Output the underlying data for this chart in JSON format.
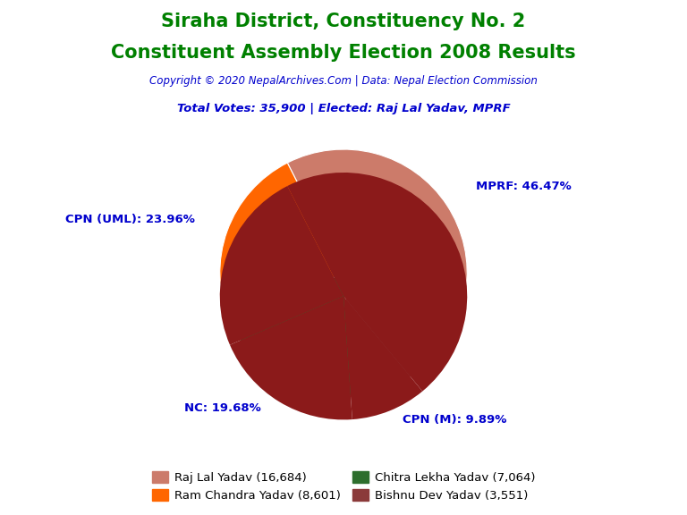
{
  "title_line1": "Siraha District, Constituency No. 2",
  "title_line2": "Constituent Assembly Election 2008 Results",
  "title_color": "#008000",
  "copyright_text": "Copyright © 2020 NepalArchives.Com | Data: Nepal Election Commission",
  "copyright_color": "#0000CD",
  "total_votes_text": "Total Votes: 35,900 | Elected: Raj Lal Yadav, MPRF",
  "total_votes_color": "#0000CD",
  "slices": [
    {
      "label": "MPRF",
      "value": 16684,
      "pct": "46.47",
      "color": "#CC7B6A"
    },
    {
      "label": "CPN (M)",
      "value": 3551,
      "pct": "9.89",
      "color": "#8B3A3A"
    },
    {
      "label": "NC",
      "value": 7064,
      "pct": "19.68",
      "color": "#2D6E2D"
    },
    {
      "label": "CPN (UML)",
      "value": 8601,
      "pct": "23.96",
      "color": "#FF6600"
    }
  ],
  "legend_entries": [
    {
      "label": "Raj Lal Yadav (16,684)",
      "color": "#CC7B6A"
    },
    {
      "label": "Ram Chandra Yadav (8,601)",
      "color": "#FF6600"
    },
    {
      "label": "Chitra Lekha Yadav (7,064)",
      "color": "#2D6E2D"
    },
    {
      "label": "Bishnu Dev Yadav (3,551)",
      "color": "#8B3A3A"
    }
  ],
  "label_color": "#0000CD",
  "background_color": "#FFFFFF",
  "startangle": 117,
  "shadow_color": "#8B1A1A",
  "shadow_depth": 0.045
}
